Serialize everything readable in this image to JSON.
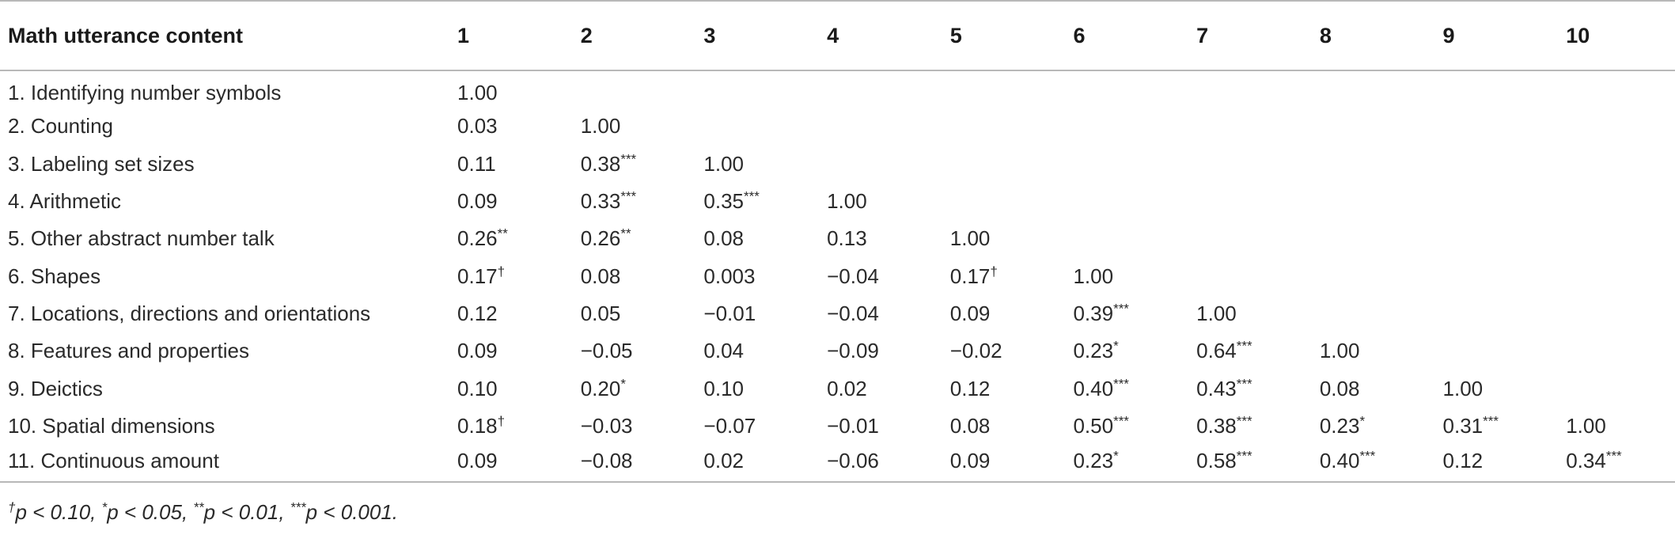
{
  "table": {
    "header": [
      "Math utterance content",
      "1",
      "2",
      "3",
      "4",
      "5",
      "6",
      "7",
      "8",
      "9",
      "10"
    ],
    "rows": [
      {
        "label": "1. Identifying number symbols",
        "cells": [
          "1.00",
          "",
          "",
          "",
          "",
          "",
          "",
          "",
          "",
          ""
        ]
      },
      {
        "label": "2. Counting",
        "cells": [
          "0.03",
          "1.00",
          "",
          "",
          "",
          "",
          "",
          "",
          "",
          ""
        ]
      },
      {
        "label": "3. Labeling set sizes",
        "cells": [
          "0.11",
          "0.38***",
          "1.00",
          "",
          "",
          "",
          "",
          "",
          "",
          ""
        ]
      },
      {
        "label": "4. Arithmetic",
        "cells": [
          "0.09",
          "0.33***",
          "0.35***",
          "1.00",
          "",
          "",
          "",
          "",
          "",
          ""
        ]
      },
      {
        "label": "5. Other abstract number talk",
        "cells": [
          "0.26**",
          "0.26**",
          "0.08",
          "0.13",
          "1.00",
          "",
          "",
          "",
          "",
          ""
        ]
      },
      {
        "label": "6. Shapes",
        "cells": [
          "0.17†",
          "0.08",
          "0.003",
          "−0.04",
          "0.17†",
          "1.00",
          "",
          "",
          "",
          ""
        ]
      },
      {
        "label": "7. Locations, directions and orientations",
        "cells": [
          "0.12",
          "0.05",
          "−0.01",
          "−0.04",
          "0.09",
          "0.39***",
          "1.00",
          "",
          "",
          ""
        ]
      },
      {
        "label": "8. Features and properties",
        "cells": [
          "0.09",
          "−0.05",
          "0.04",
          "−0.09",
          "−0.02",
          "0.23*",
          "0.64***",
          "1.00",
          "",
          ""
        ]
      },
      {
        "label": "9. Deictics",
        "cells": [
          "0.10",
          "0.20*",
          "0.10",
          "0.02",
          "0.12",
          "0.40***",
          "0.43***",
          "0.08",
          "1.00",
          ""
        ]
      },
      {
        "label": "10. Spatial dimensions",
        "cells": [
          "0.18†",
          "−0.03",
          "−0.07",
          "−0.01",
          "0.08",
          "0.50***",
          "0.38***",
          "0.23*",
          "0.31***",
          "1.00"
        ]
      },
      {
        "label": "11. Continuous amount",
        "cells": [
          "0.09",
          "−0.08",
          "0.02",
          "−0.06",
          "0.09",
          "0.23*",
          "0.58***",
          "0.40***",
          "0.12",
          "0.34***"
        ]
      }
    ]
  },
  "footnote": "†p < 0.10, *p < 0.05, **p < 0.01, ***p < 0.001."
}
